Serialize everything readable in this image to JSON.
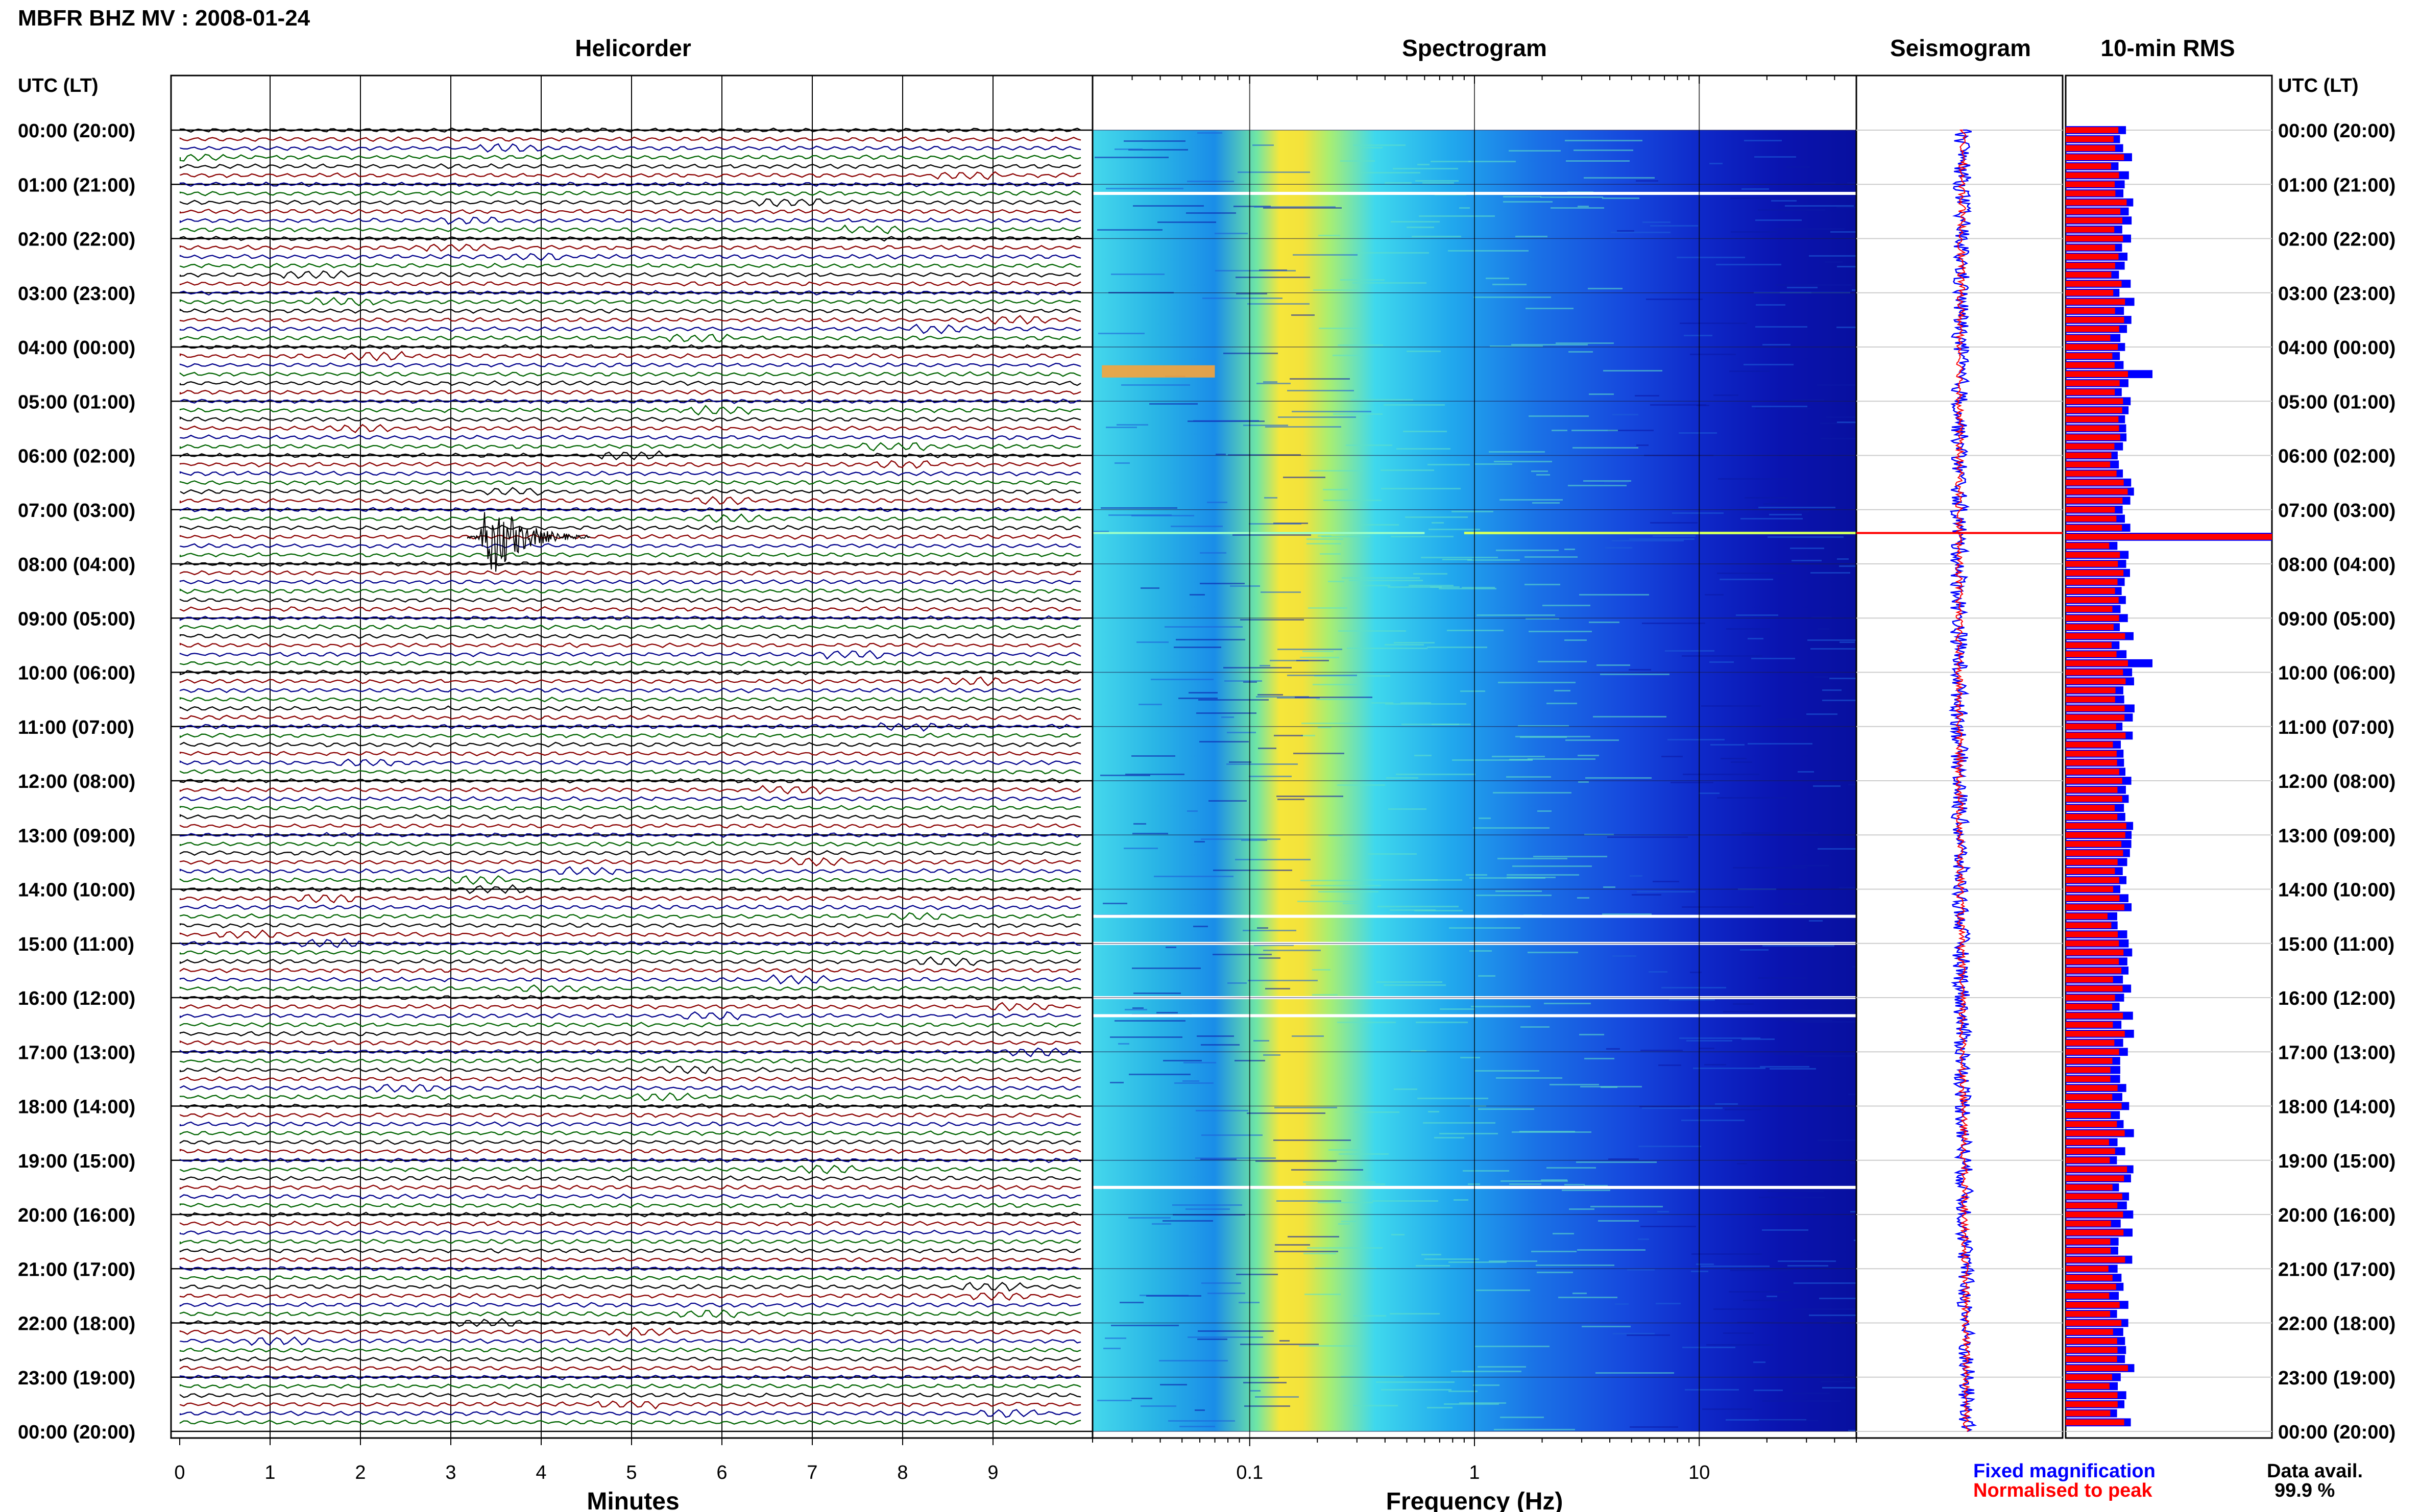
{
  "title": "MBFR BHZ MV : 2008-01-24",
  "panels": {
    "helicorder": "Helicorder",
    "spectrogram": "Spectrogram",
    "seismogram": "Seismogram",
    "rms": "10-min RMS"
  },
  "axis_header_left": "UTC (LT)",
  "axis_header_right": "UTC (LT)",
  "time_labels": [
    "00:00 (20:00)",
    "01:00 (21:00)",
    "02:00 (22:00)",
    "03:00 (23:00)",
    "04:00 (00:00)",
    "05:00 (01:00)",
    "06:00 (02:00)",
    "07:00 (03:00)",
    "08:00 (04:00)",
    "09:00 (05:00)",
    "10:00 (06:00)",
    "11:00 (07:00)",
    "12:00 (08:00)",
    "13:00 (09:00)",
    "14:00 (10:00)",
    "15:00 (11:00)",
    "16:00 (12:00)",
    "17:00 (13:00)",
    "18:00 (14:00)",
    "19:00 (15:00)",
    "20:00 (16:00)",
    "21:00 (17:00)",
    "22:00 (18:00)",
    "23:00 (19:00)",
    "00:00 (20:00)"
  ],
  "helicorder_xlabel": "Minutes",
  "helicorder_ticks": [
    "0",
    "1",
    "2",
    "3",
    "4",
    "5",
    "6",
    "7",
    "8",
    "9"
  ],
  "spectrogram_xlabel": "Frequency (Hz)",
  "spectrogram_ticks": [
    "0.1",
    "1",
    "10"
  ],
  "legend": {
    "fixed": "Fixed magnification",
    "normalised": "Normalised to peak",
    "fixed_color": "#0000ff",
    "normalised_color": "#ff0000"
  },
  "data_avail_label": "Data avail.",
  "data_avail_value": "99.9 %",
  "trace_colors": [
    "#000000",
    "#8b0000",
    "#00008b",
    "#006400"
  ],
  "chart_data": {
    "type": "heatmap",
    "station": "MBFR BHZ MV",
    "date": "2008-01-24",
    "helicorder": {
      "x_range_minutes": [
        0,
        10
      ],
      "rows_per_hour": 6,
      "event": {
        "utc": "07:30",
        "minute": 3.3
      }
    },
    "spectrogram": {
      "x_scale": "log",
      "x_range_hz": [
        0.02,
        50
      ],
      "peak_band_hz": [
        0.15,
        0.3
      ],
      "data_gaps_utc": [
        "01:10",
        "14:30",
        "15:00",
        "16:00",
        "16:20",
        "19:30"
      ]
    },
    "rms_10min": {
      "peak_utc": "07:30"
    }
  }
}
